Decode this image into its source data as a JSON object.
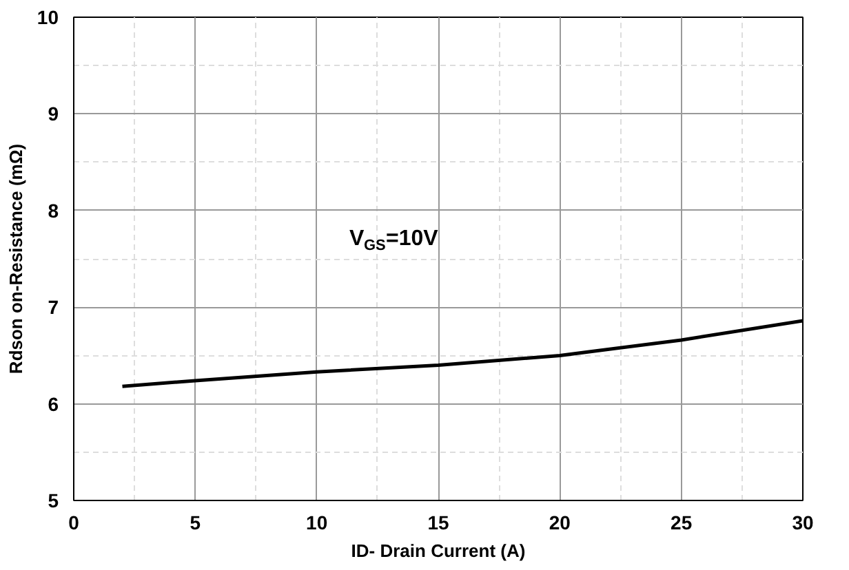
{
  "chart_data": {
    "type": "line",
    "xlabel": "ID- Drain Current (A)",
    "ylabel": "Rdson on-Resistance (mΩ)",
    "x": [
      2,
      5,
      10,
      15,
      20,
      25,
      30
    ],
    "series": [
      {
        "color": "#000000",
        "values": [
          6.18,
          6.24,
          6.33,
          6.4,
          6.5,
          6.66,
          6.86
        ]
      }
    ],
    "xlim": [
      0,
      30
    ],
    "ylim": [
      5,
      10
    ],
    "xticks": [
      0,
      5,
      10,
      15,
      20,
      25,
      30
    ],
    "yticks": [
      5,
      6,
      7,
      8,
      9,
      10
    ],
    "grid": true,
    "marker": "none",
    "line_style": "solid",
    "annotations": [
      "V$_{GS}$=10V"
    ]
  }
}
